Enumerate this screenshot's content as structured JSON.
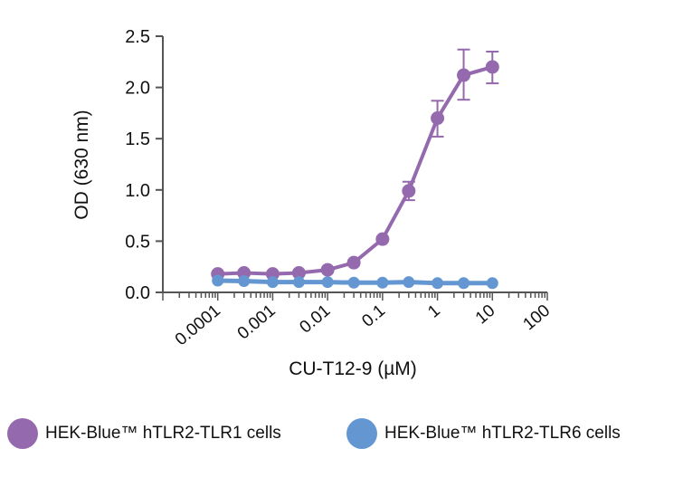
{
  "chart_data": {
    "type": "line",
    "title": "",
    "xlabel": "CU-T12-9 (µM)",
    "ylabel": "OD (630 nm)",
    "xscale": "log",
    "xlim": [
      1e-05,
      100
    ],
    "ylim": [
      0,
      2.5
    ],
    "xticks": [
      0.0001,
      0.001,
      0.01,
      0.1,
      1,
      10,
      100
    ],
    "xtick_labels": [
      "0.0001",
      "0.001",
      "0.01",
      "0.1",
      "1",
      "10",
      "100"
    ],
    "yticks": [
      0,
      0.5,
      1.0,
      1.5,
      2.0,
      2.5
    ],
    "ytick_labels": [
      "0.0",
      "0.5",
      "1.0",
      "1.5",
      "2.0",
      "2.5"
    ],
    "grid": false,
    "legend_placement": "bottom",
    "x": [
      0.0001,
      0.0003,
      0.001,
      0.003,
      0.01,
      0.03,
      0.1,
      0.3,
      1,
      3,
      10
    ],
    "series": [
      {
        "name": "HEK-Blue™ hTLR2-TLR1 cells",
        "color": "#9469ad",
        "values": [
          0.18,
          0.19,
          0.18,
          0.19,
          0.22,
          0.29,
          0.52,
          0.99,
          1.7,
          2.12,
          2.2
        ],
        "error_low": [
          null,
          null,
          null,
          null,
          null,
          null,
          null,
          0.9,
          1.52,
          1.88,
          2.04
        ],
        "error_high": [
          null,
          null,
          null,
          null,
          null,
          null,
          null,
          1.08,
          1.87,
          2.37,
          2.35
        ]
      },
      {
        "name": "HEK-Blue™ hTLR2-TLR6 cells",
        "color": "#6497d2",
        "values": [
          0.115,
          0.11,
          0.1,
          0.1,
          0.1,
          0.095,
          0.095,
          0.1,
          0.09,
          0.09,
          0.09
        ]
      }
    ]
  }
}
